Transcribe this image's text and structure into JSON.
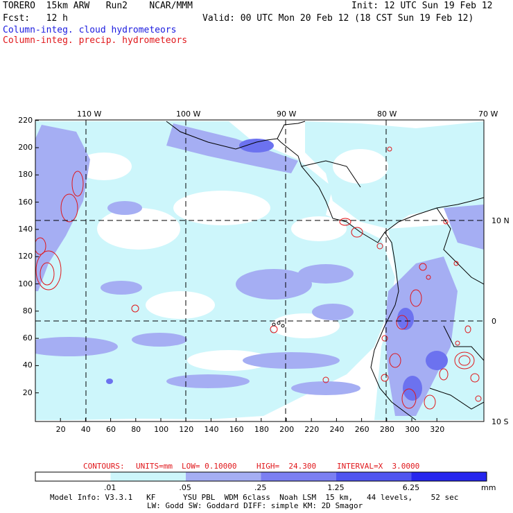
{
  "header": {
    "title": "TORERO  15km ARW   Run2    NCAR/MMM",
    "init": "Init: 12 UTC Sun 19 Feb 12",
    "fcst": "Fcst:   12 h",
    "valid": "Valid: 00 UTC Mon 20 Feb 12 (18 CST Sun 19 Feb 12)",
    "field_cloud": "Column-integ. cloud hydrometeors",
    "field_precip": "Column-integ. precip. hydrometeors"
  },
  "map": {
    "lon_labels": [
      "110 W",
      "100 W",
      "90 W",
      "80 W",
      "70 W"
    ],
    "lat_labels": [
      "10 N",
      "0",
      "10 S"
    ],
    "x_ticks": [
      "20",
      "40",
      "60",
      "80",
      "100",
      "120",
      "140",
      "160",
      "180",
      "200",
      "220",
      "240",
      "260",
      "280",
      "300",
      "320"
    ],
    "y_ticks": [
      "220",
      "200",
      "180",
      "160",
      "140",
      "120",
      "100",
      "80",
      "60",
      "40",
      "20"
    ]
  },
  "contours": {
    "label": "CONTOURS:",
    "units": "UNITS=mm",
    "low": "LOW= 0.10000",
    "high": "HIGH=  24.300",
    "interval": "INTERVAL=X  3.0000"
  },
  "colorbar": {
    "labels": [
      ".01",
      ".05",
      ".25",
      "1.25",
      "6.25"
    ],
    "unit": "mm",
    "colors": [
      "#ffffff",
      "#cdf6fb",
      "#a5aef3",
      "#7b7ff2",
      "#4f55f0",
      "#2626ee"
    ]
  },
  "footer": {
    "line1": "Model Info: V3.3.1   KF      YSU PBL  WDM 6class  Noah LSM  15 km,   44 levels,    52 sec",
    "line2": "LW: Godd SW: Goddard DIFF: simple KM: 2D Smagor"
  }
}
